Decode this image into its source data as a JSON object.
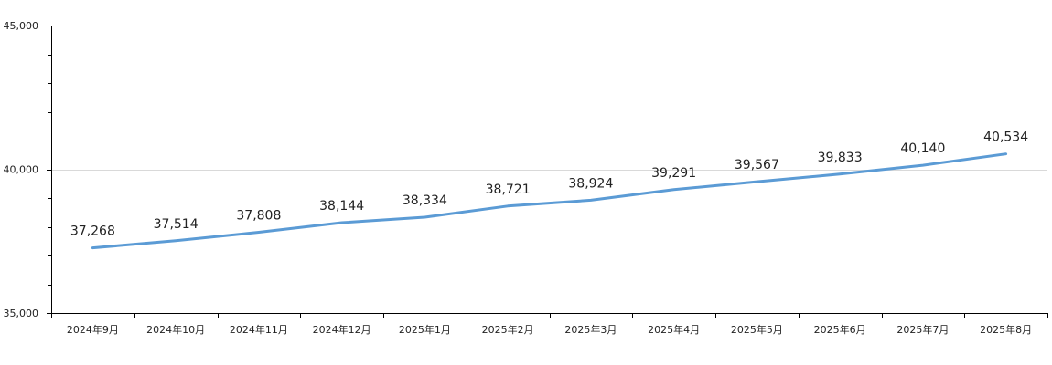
{
  "chart_data": {
    "type": "line",
    "categories": [
      "2024年9月",
      "2024年10月",
      "2024年11月",
      "2024年12月",
      "2025年1月",
      "2025年2月",
      "2025年3月",
      "2025年4月",
      "2025年5月",
      "2025年6月",
      "2025年7月",
      "2025年8月"
    ],
    "series": [
      {
        "values": [
          37268,
          37514,
          37808,
          38144,
          38334,
          38721,
          38924,
          39291,
          39567,
          39833,
          40140,
          40534
        ],
        "labels": [
          "37,268",
          "37,514",
          "37,808",
          "38,144",
          "38,334",
          "38,721",
          "38,924",
          "39,291",
          "39,567",
          "39,833",
          "40,140",
          "40,534"
        ],
        "color": "#5b9bd5"
      }
    ],
    "ylim": [
      35000,
      45000
    ],
    "yticks": [
      35000,
      40000,
      45000
    ],
    "ytick_labels": [
      "35,000",
      "40,000",
      "45,000"
    ],
    "y_minor_step": 1000,
    "grid": "horizontal major gridlines",
    "legend": "none",
    "title": "",
    "xlabel": "",
    "ylabel": "",
    "colors": {
      "line": "#5b9bd5",
      "grid": "#d9d9d9",
      "axis": "#000000",
      "text": "#222222"
    }
  }
}
